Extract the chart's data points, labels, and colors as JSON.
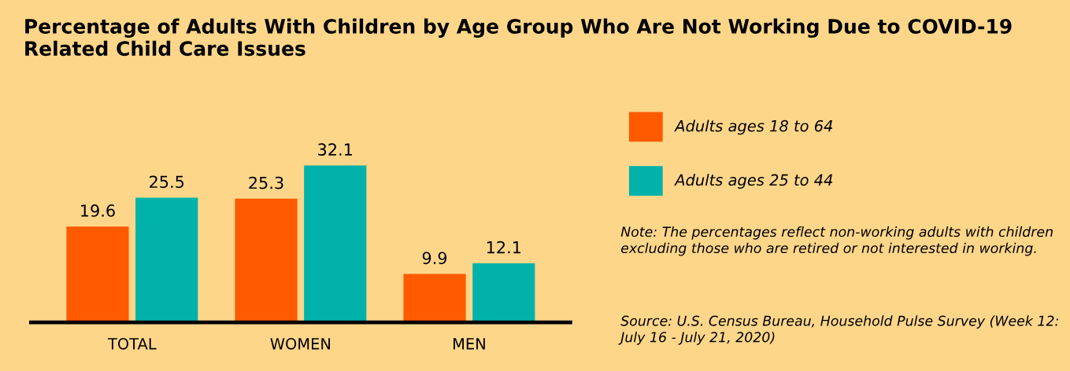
{
  "chart_data": {
    "type": "bar",
    "title": "Percentage of Adults With Children by Age Group Who Are Not Working Due to COVID-19 Related Child Care Issues",
    "categories": [
      "TOTAL",
      "WOMEN",
      "MEN"
    ],
    "series": [
      {
        "name": "Adults ages 18 to 64",
        "color": "#ff5a00",
        "values": [
          19.6,
          25.3,
          9.9
        ]
      },
      {
        "name": "Adults ages 25 to 44",
        "color": "#00b2aa",
        "values": [
          25.5,
          32.1,
          12.1
        ]
      }
    ],
    "data_labels": true,
    "legend": "right",
    "grid": false,
    "annotations": [
      "Note: The percentages reflect non-working adults with children excluding those who are retired or not interested in working.",
      "Source: U.S. Census Bureau, Household Pulse Survey (Week 12: July 16 - July 21, 2020)"
    ]
  }
}
